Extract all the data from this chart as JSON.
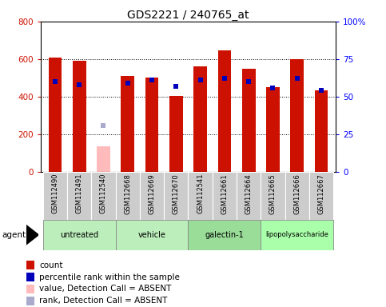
{
  "title": "GDS2221 / 240765_at",
  "samples": [
    "GSM112490",
    "GSM112491",
    "GSM112540",
    "GSM112668",
    "GSM112669",
    "GSM112670",
    "GSM112541",
    "GSM112661",
    "GSM112664",
    "GSM112665",
    "GSM112666",
    "GSM112667"
  ],
  "counts": [
    610,
    590,
    null,
    510,
    500,
    405,
    560,
    645,
    550,
    450,
    600,
    435
  ],
  "absent_counts": [
    null,
    null,
    135,
    null,
    null,
    null,
    null,
    null,
    null,
    null,
    null,
    null
  ],
  "percentile_ranks": [
    60,
    58,
    null,
    59,
    61,
    57,
    61,
    62,
    60,
    56,
    62,
    54
  ],
  "absent_ranks": [
    null,
    null,
    31,
    null,
    null,
    null,
    null,
    null,
    null,
    null,
    null,
    null
  ],
  "groups": [
    {
      "label": "untreated",
      "indices": [
        0,
        1,
        2
      ],
      "color": "#bbeebb"
    },
    {
      "label": "vehicle",
      "indices": [
        3,
        4,
        5
      ],
      "color": "#bbeebb"
    },
    {
      "label": "galectin-1",
      "indices": [
        6,
        7,
        8
      ],
      "color": "#99dd99"
    },
    {
      "label": "lipopolysaccharide",
      "indices": [
        9,
        10,
        11
      ],
      "color": "#aaffaa"
    }
  ],
  "ylim_left": [
    0,
    800
  ],
  "ylim_right": [
    0,
    100
  ],
  "yticks_left": [
    0,
    200,
    400,
    600,
    800
  ],
  "yticks_right": [
    0,
    25,
    50,
    75,
    100
  ],
  "ytick_labels_right": [
    "0",
    "25",
    "50",
    "75",
    "100%"
  ],
  "bar_color": "#cc1100",
  "absent_bar_color": "#ffbbbb",
  "rank_color": "#0000bb",
  "absent_rank_color": "#aaaacc",
  "plot_bg": "#ffffff",
  "bar_width": 0.55,
  "rank_marker_size": 5
}
